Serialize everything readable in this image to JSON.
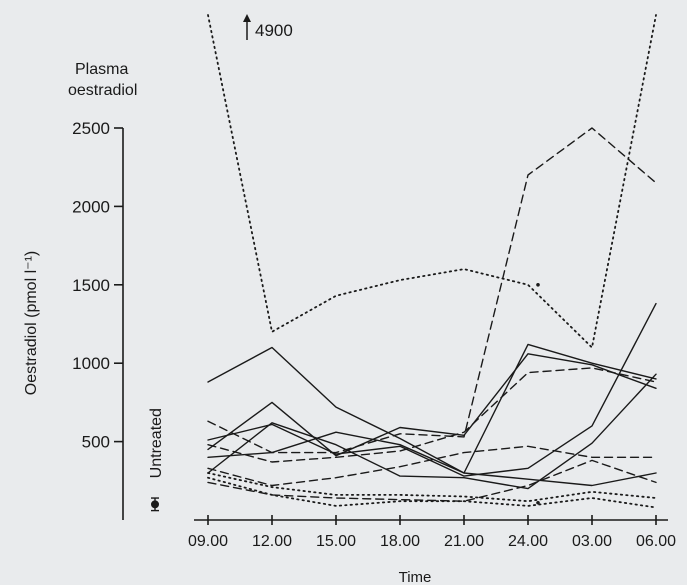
{
  "chart_data": {
    "type": "line",
    "title": "Plasma oestradiol",
    "title_lines": [
      "Plasma",
      "oestradiol"
    ],
    "xlabel": "Time",
    "ylabel": "Oestradiol (pmol l⁻¹)",
    "categories": [
      "09.00",
      "12.00",
      "15.00",
      "18.00",
      "21.00",
      "24.00",
      "03.00",
      "06.00"
    ],
    "ylim": [
      0,
      2500
    ],
    "yticks": [
      500,
      1000,
      1500,
      2000,
      2500
    ],
    "grid": false,
    "offscale_annotation": {
      "label": "4900",
      "series_index": 0,
      "category_index": 0
    },
    "untreated": {
      "label": "Untreated",
      "value": 100,
      "error": 40
    },
    "series": [
      {
        "style": "dotted",
        "values": [
          4900,
          1200,
          1430,
          1530,
          1600,
          1500,
          1100,
          2520
        ]
      },
      {
        "style": "dotted",
        "values": [
          300,
          210,
          160,
          160,
          150,
          120,
          180,
          140
        ]
      },
      {
        "style": "dotted",
        "values": [
          270,
          160,
          90,
          120,
          120,
          90,
          140,
          80
        ]
      },
      {
        "style": "dashed",
        "values": [
          630,
          430,
          430,
          550,
          530,
          2200,
          2500,
          2150
        ]
      },
      {
        "style": "dashed",
        "values": [
          480,
          370,
          400,
          440,
          560,
          940,
          970,
          880
        ]
      },
      {
        "style": "dashed",
        "values": [
          330,
          220,
          270,
          340,
          430,
          470,
          400,
          400
        ]
      },
      {
        "style": "dashed",
        "values": [
          240,
          160,
          140,
          130,
          120,
          220,
          380,
          240
        ]
      },
      {
        "style": "solid",
        "values": [
          880,
          1100,
          720,
          520,
          300,
          1120,
          1000,
          900
        ]
      },
      {
        "style": "solid",
        "values": [
          450,
          750,
          410,
          590,
          540,
          1060,
          990,
          840
        ]
      },
      {
        "style": "solid",
        "values": [
          510,
          610,
          420,
          470,
          280,
          330,
          600,
          1380
        ]
      },
      {
        "style": "solid",
        "values": [
          400,
          430,
          560,
          480,
          300,
          260,
          220,
          300
        ]
      },
      {
        "style": "solid",
        "values": [
          300,
          620,
          480,
          280,
          270,
          200,
          490,
          930
        ]
      }
    ]
  }
}
